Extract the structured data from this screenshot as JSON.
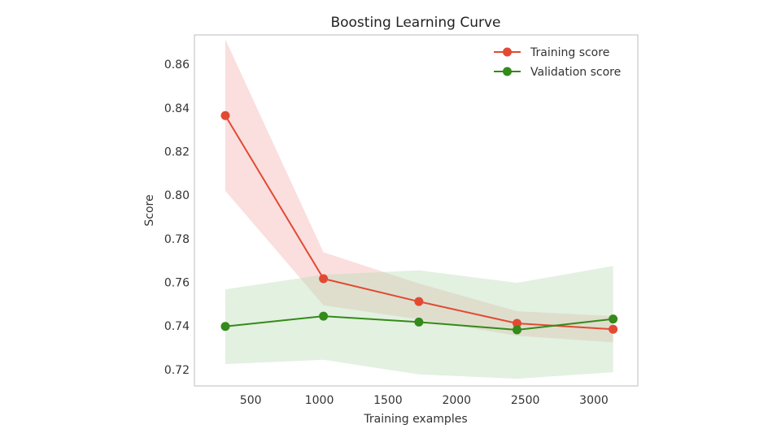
{
  "chart_data": {
    "type": "line",
    "title": "Boosting Learning Curve",
    "xlabel": "Training examples",
    "ylabel": "Score",
    "xlim": [
      90,
      3320
    ],
    "ylim": [
      0.7125,
      0.8735
    ],
    "xticks": [
      500,
      1000,
      1500,
      2000,
      2500,
      3000
    ],
    "yticks": [
      0.72,
      0.74,
      0.76,
      0.78,
      0.8,
      0.82,
      0.84,
      0.86
    ],
    "grid": false,
    "legend_position": "top-right",
    "x": [
      315,
      1030,
      1725,
      2440,
      3140
    ],
    "series": [
      {
        "name": "Training score",
        "color": "#e24a33",
        "band_color": "#f4b3b0",
        "values": [
          0.8365,
          0.7617,
          0.7512,
          0.7412,
          0.7385
        ],
        "lower": [
          0.802,
          0.7495,
          0.743,
          0.7355,
          0.7325
        ],
        "upper": [
          0.8715,
          0.7738,
          0.7595,
          0.7468,
          0.7445
        ]
      },
      {
        "name": "Validation score",
        "color": "#348a1a",
        "band_color": "#b9ddb4",
        "values": [
          0.7398,
          0.7445,
          0.7418,
          0.7382,
          0.7432
        ],
        "lower": [
          0.7225,
          0.7245,
          0.7178,
          0.7158,
          0.7188
        ],
        "upper": [
          0.7568,
          0.7635,
          0.7655,
          0.7598,
          0.7675
        ]
      }
    ]
  }
}
